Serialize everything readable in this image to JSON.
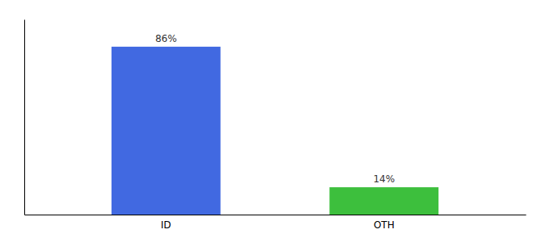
{
  "chart_data": {
    "type": "bar",
    "categories": [
      "ID",
      "OTH"
    ],
    "values": [
      86,
      14
    ],
    "colors": [
      "#4169e1",
      "#3dbf3d"
    ],
    "value_labels": [
      "86%",
      "14%"
    ],
    "data_labels": true,
    "ylim": [
      0,
      100
    ],
    "tick_labels": "x"
  }
}
